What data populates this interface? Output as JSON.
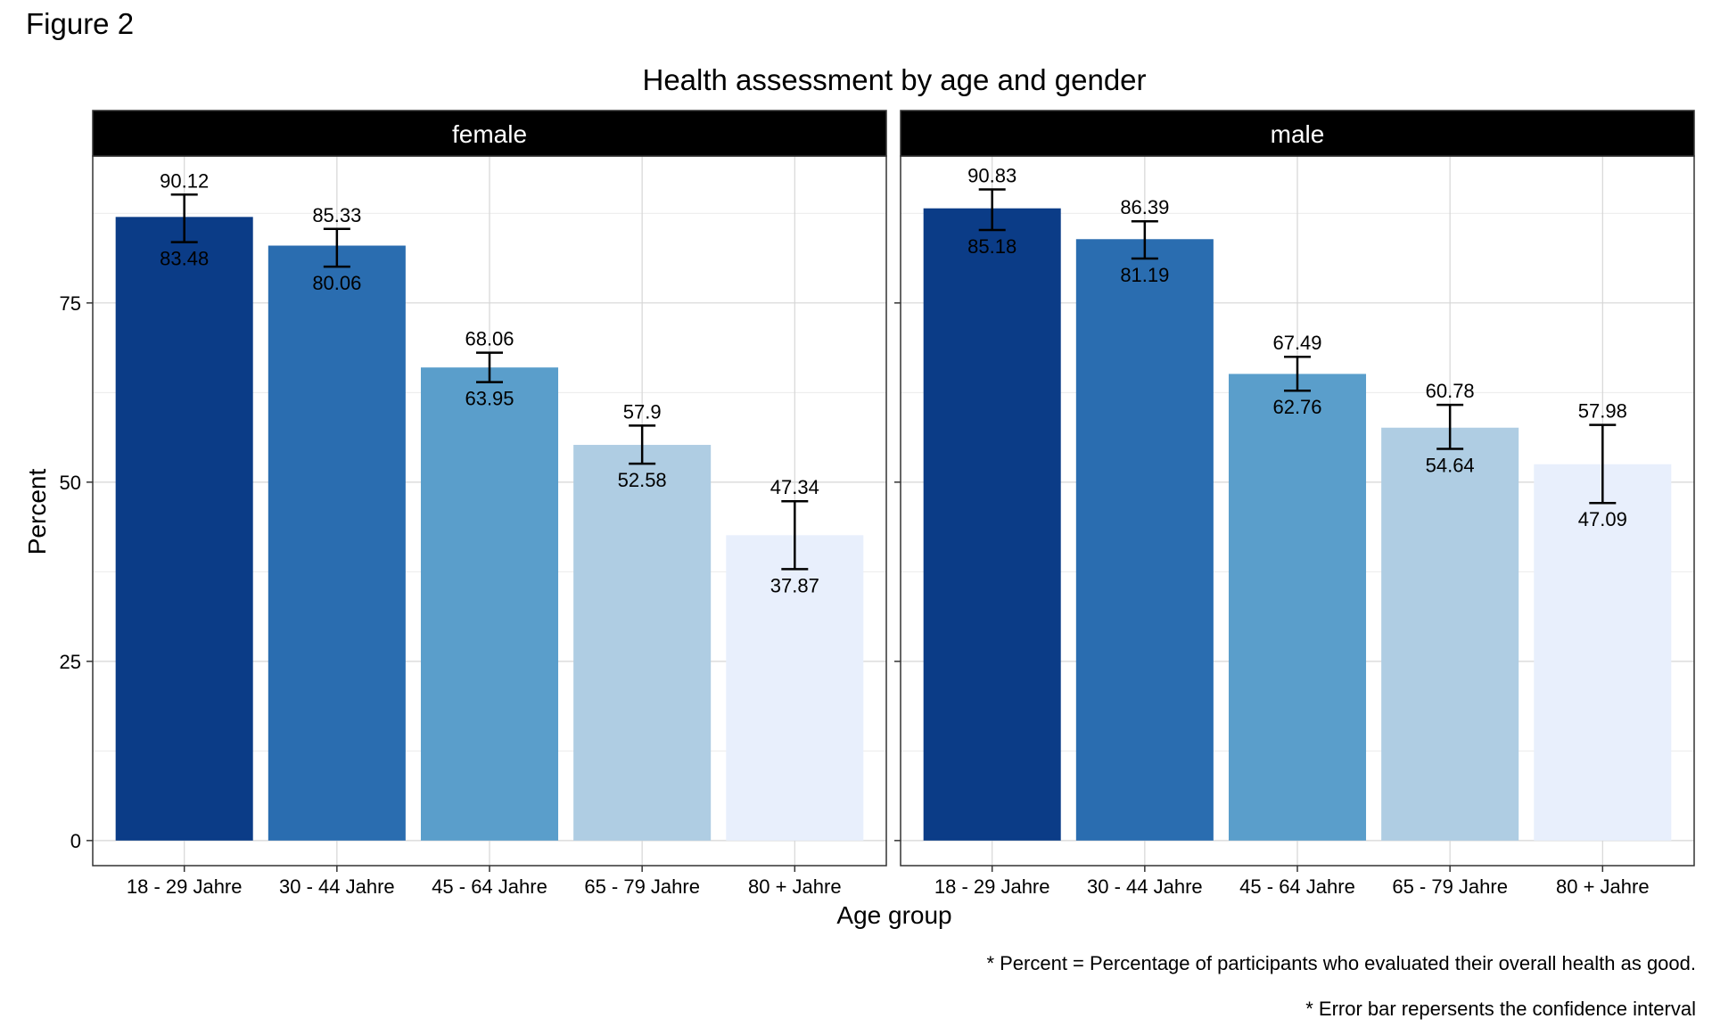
{
  "figure_label": "Figure 2",
  "footnotes": [
    "* Percent = Percentage of participants who evaluated their overall health as good.",
    "* Error bar repersents the confidence interval"
  ],
  "colors": {
    "category_fills": [
      "#0b3c87",
      "#2a6db0",
      "#5a9ecb",
      "#afcde3",
      "#e8effc"
    ],
    "strip_background": "#000000",
    "strip_text": "#ffffff",
    "gridline": "#d6d6d6"
  },
  "chart_data": {
    "type": "bar",
    "title": "Health assessment by age and gender",
    "xlabel": "Age group",
    "ylabel": "Percent",
    "ylim": [
      -3.5,
      95.5
    ],
    "yticks": [
      0,
      25,
      50,
      75
    ],
    "grid": true,
    "legend": "none",
    "categories": [
      "18 - 29 Jahre",
      "30 - 44 Jahre",
      "45 - 64 Jahre",
      "65 - 79 Jahre",
      "80 + Jahre"
    ],
    "panels": [
      {
        "name": "female",
        "values": [
          87.0,
          83.0,
          66.0,
          55.2,
          42.6
        ],
        "ci_upper": [
          90.12,
          85.33,
          68.06,
          57.9,
          47.34
        ],
        "ci_lower": [
          83.48,
          80.06,
          63.95,
          52.58,
          37.87
        ],
        "upper_labels": [
          "90.12",
          "85.33",
          "68.06",
          "57.9",
          "47.34"
        ],
        "lower_labels": [
          "83.48",
          "80.06",
          "63.95",
          "52.58",
          "37.87"
        ]
      },
      {
        "name": "male",
        "values": [
          88.2,
          83.9,
          65.1,
          57.6,
          52.5
        ],
        "ci_upper": [
          90.83,
          86.39,
          67.49,
          60.78,
          57.98
        ],
        "ci_lower": [
          85.18,
          81.19,
          62.76,
          54.64,
          47.09
        ],
        "upper_labels": [
          "90.83",
          "86.39",
          "67.49",
          "60.78",
          "57.98"
        ],
        "lower_labels": [
          "85.18",
          "81.19",
          "62.76",
          "54.64",
          "47.09"
        ]
      }
    ]
  }
}
